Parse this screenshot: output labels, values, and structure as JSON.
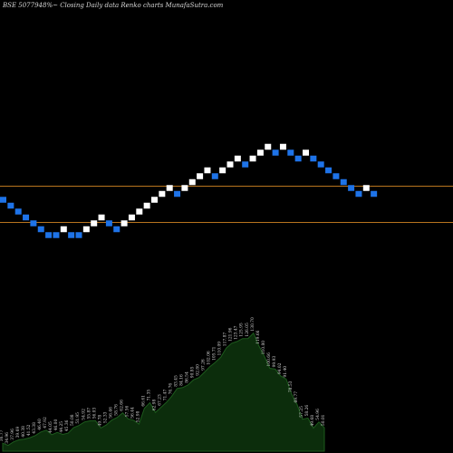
{
  "header": {
    "symbol": "BSE 507794",
    "details": "8%~  Closing Daily data  Renko  charts MunafaSutra.com"
  },
  "colors": {
    "background": "#000000",
    "brick_up": "#ffffff",
    "brick_down": "#1e73e8",
    "support_line": "#b8741e",
    "volume_fill": "#0c2d0c",
    "volume_line": "#1d5a1d"
  },
  "chart_data": {
    "type": "renko",
    "renko_levels": [
      0,
      -1,
      -2,
      -3,
      -4,
      -5,
      -6,
      -6,
      -5,
      -6,
      -6,
      -5,
      -4,
      -3,
      -4,
      -5,
      -4,
      -3,
      -2,
      -1,
      0,
      1,
      2,
      1,
      2,
      3,
      4,
      5,
      4,
      5,
      6,
      7,
      6,
      7,
      8,
      9,
      8,
      9,
      8,
      7,
      8,
      7,
      6,
      5,
      4,
      3,
      2,
      1,
      2,
      1
    ],
    "brick_colors": [
      "down",
      "down",
      "down",
      "down",
      "down",
      "down",
      "down",
      "down",
      "up",
      "down",
      "down",
      "up",
      "up",
      "up",
      "down",
      "down",
      "up",
      "up",
      "up",
      "up",
      "up",
      "up",
      "up",
      "down",
      "up",
      "up",
      "up",
      "up",
      "down",
      "up",
      "up",
      "up",
      "down",
      "up",
      "up",
      "up",
      "down",
      "up",
      "down",
      "down",
      "up",
      "down",
      "down",
      "down",
      "down",
      "down",
      "down",
      "down",
      "up",
      "down"
    ],
    "horizontal_lines": [
      "upper",
      "lower"
    ],
    "volume_labels": [
      "36.77",
      "34.96",
      "37.96",
      "39.69",
      "40.38",
      "41.52",
      "43.38",
      "46.40",
      "47.92",
      "44.05",
      "46.00",
      "44.25",
      "45.36",
      "50.08",
      "51.95",
      "54.92",
      "55.87",
      "56.03",
      "49.78",
      "52.33",
      "56.46",
      "58.76",
      "62.66",
      "57.56",
      "56.44",
      "52.98",
      "66.61",
      "71.35",
      "62.98",
      "67.23",
      "71.47",
      "76.76",
      "83.45",
      "84.16",
      "86.54",
      "90.85",
      "92.80",
      "97.26",
      "102.06",
      "105.71",
      "110.09",
      "117.87",
      "121.96",
      "123.47",
      "125.95",
      "126.05",
      "130.70",
      "119.66",
      "110.80",
      "100.66",
      "99.93",
      "94.02",
      "91.40",
      "78.53",
      "69.77",
      "57.25",
      "58.26",
      "49.68",
      "54.96",
      "50.01"
    ]
  }
}
